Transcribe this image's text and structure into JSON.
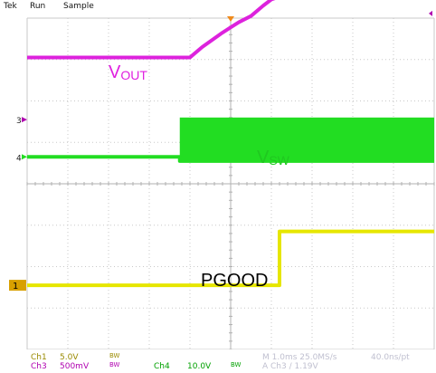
{
  "header": {
    "brand": "Tek",
    "run_state": "Run",
    "acq_mode": "Sample"
  },
  "chart_data": {
    "type": "line",
    "title": "",
    "grid": true,
    "x_divisions": 10,
    "y_divisions": 8,
    "x_unit": "div",
    "y_unit": "div",
    "series": [
      {
        "name": "VOUT",
        "label_main": "V",
        "label_sub": "OUT",
        "channel": "Ch3",
        "color": "#dd22dd",
        "marker": "",
        "x": [
          0,
          4.0,
          4.3,
          4.8,
          5.2,
          5.5,
          5.8,
          6.0,
          6.3,
          7.0,
          10.0
        ],
        "y": [
          7.05,
          7.05,
          7.3,
          7.65,
          7.9,
          8.05,
          8.3,
          8.45,
          8.55,
          8.55,
          8.55
        ]
      },
      {
        "name": "VSW",
        "label_main": "V",
        "label_sub": "SW",
        "channel": "Ch4",
        "color": "#22dd22",
        "marker": "4",
        "x": [
          0,
          3.75,
          3.75,
          10.0
        ],
        "y": [
          4.65,
          4.65,
          4.55,
          4.55
        ],
        "switching_start": 3.75,
        "switching_high": 5.6
      },
      {
        "name": "PGOOD",
        "label_main": "PGOOD",
        "label_sub": "",
        "channel": "Ch1",
        "color": "#e6e600",
        "marker": "1",
        "x": [
          0,
          6.2,
          6.2,
          10.0
        ],
        "y": [
          1.55,
          1.55,
          2.85,
          2.85
        ]
      }
    ],
    "extra_markers": [
      {
        "label": "3",
        "y": 5.55,
        "color": "#b000b0"
      }
    ]
  },
  "footer": {
    "ch1_label": "Ch1",
    "ch1_scale": "5.0V",
    "ch3_label": "Ch3",
    "ch3_scale": "500mV",
    "bw1": "BW",
    "bw3": "BW",
    "ch4_label": "Ch4",
    "ch4_scale": "10.0V",
    "bw4": "BW",
    "timebase": "M 1.0ms 25.0MS/s",
    "record": "40.0ns/pt",
    "trigger": "A  Ch3  ∕  1.19V"
  },
  "colors": {
    "grid": "#c8c8c8",
    "background": "#ffffff"
  }
}
